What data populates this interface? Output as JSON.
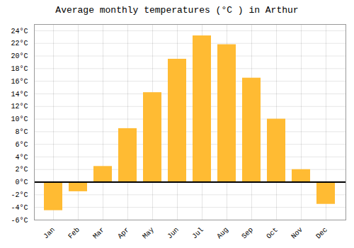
{
  "chart_data": {
    "type": "bar",
    "title": "Average monthly temperatures (°C ) in Arthur",
    "categories": [
      "Jan",
      "Feb",
      "Mar",
      "Apr",
      "May",
      "Jun",
      "Jul",
      "Aug",
      "Sep",
      "Oct",
      "Nov",
      "Dec"
    ],
    "values": [
      -4.5,
      -1.5,
      2.5,
      8.5,
      14.2,
      19.5,
      23.2,
      21.8,
      16.5,
      10.0,
      2.0,
      -3.5
    ],
    "color": "#FFBB33",
    "ylim": [
      -6,
      25
    ],
    "yticks": [
      {
        "value": -6,
        "label": "-6°C"
      },
      {
        "value": -4,
        "label": "-4°C"
      },
      {
        "value": -2,
        "label": "-2°C"
      },
      {
        "value": 0,
        "label": "0°C"
      },
      {
        "value": 2,
        "label": "2°C"
      },
      {
        "value": 4,
        "label": "4°C"
      },
      {
        "value": 6,
        "label": "6°C"
      },
      {
        "value": 8,
        "label": "8°C"
      },
      {
        "value": 10,
        "label": "10°C"
      },
      {
        "value": 12,
        "label": "12°C"
      },
      {
        "value": 14,
        "label": "14°C"
      },
      {
        "value": 16,
        "label": "16°C"
      },
      {
        "value": 18,
        "label": "18°C"
      },
      {
        "value": 20,
        "label": "20°C"
      },
      {
        "value": 22,
        "label": "22°C"
      },
      {
        "value": 24,
        "label": "24°C"
      }
    ],
    "grid": true
  }
}
